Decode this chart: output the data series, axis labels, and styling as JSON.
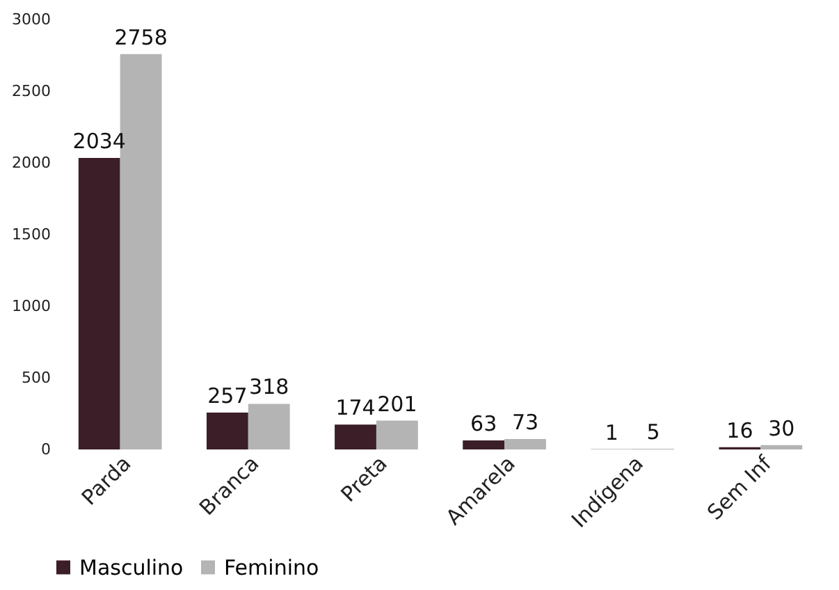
{
  "chart_data": {
    "type": "bar",
    "categories": [
      "Parda",
      "Branca",
      "Preta",
      "Amarela",
      "Indígena",
      "Sem Inf"
    ],
    "series": [
      {
        "name": "Masculino",
        "color": "#3b1e28",
        "values": [
          2034,
          257,
          174,
          63,
          1,
          16
        ]
      },
      {
        "name": "Feminino",
        "color": "#b4b4b4",
        "values": [
          2758,
          318,
          201,
          73,
          5,
          30
        ]
      }
    ],
    "ylim": [
      0,
      3000
    ],
    "yticks": [
      0,
      500,
      1000,
      1500,
      2000,
      2500,
      3000
    ],
    "grid": false,
    "legend": "bottom",
    "data_labels": true
  }
}
